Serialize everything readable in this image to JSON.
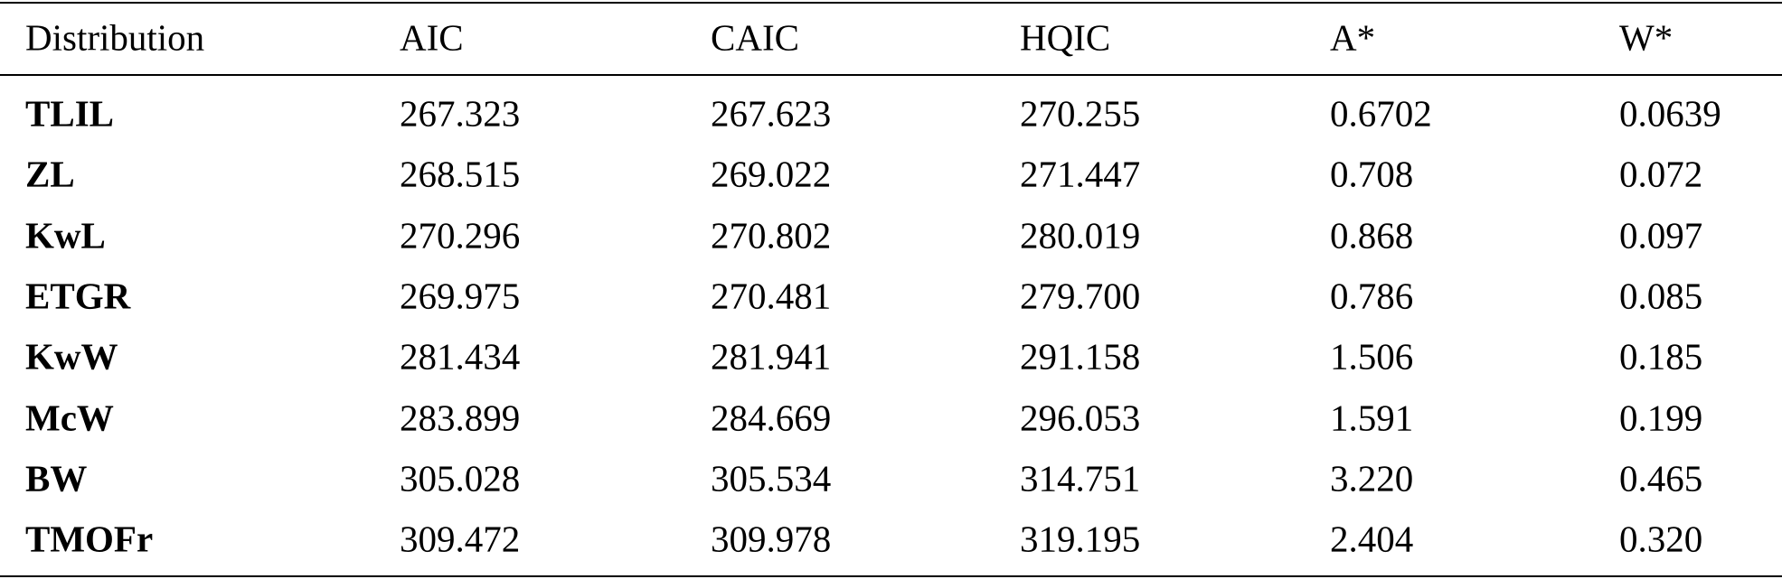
{
  "table": {
    "header": [
      "Distribution",
      "AIC",
      "CAIC",
      "HQIC",
      "A*",
      "W*"
    ],
    "rows": [
      [
        "TLIL",
        "267.323",
        "267.623",
        "270.255",
        "0.6702",
        "0.0639"
      ],
      [
        "ZL",
        "268.515",
        "269.022",
        "271.447",
        "0.708",
        "0.072"
      ],
      [
        "KwL",
        "270.296",
        "270.802",
        "280.019",
        "0.868",
        "0.097"
      ],
      [
        "ETGR",
        "269.975",
        "270.481",
        "279.700",
        "0.786",
        "0.085"
      ],
      [
        "KwW",
        "281.434",
        "281.941",
        "291.158",
        "1.506",
        "0.185"
      ],
      [
        "McW",
        "283.899",
        "284.669",
        "296.053",
        "1.591",
        "0.199"
      ],
      [
        "BW",
        "305.028",
        "305.534",
        "314.751",
        "3.220",
        "0.465"
      ],
      [
        "TMOFr",
        "309.472",
        "309.978",
        "319.195",
        "2.404",
        "0.320"
      ]
    ]
  }
}
